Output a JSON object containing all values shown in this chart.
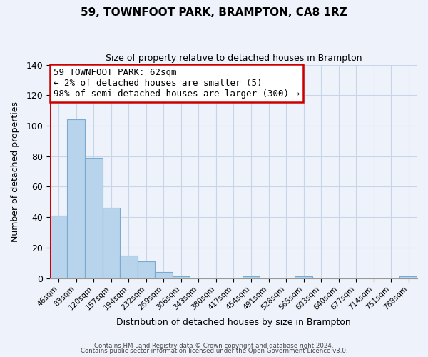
{
  "title": "59, TOWNFOOT PARK, BRAMPTON, CA8 1RZ",
  "subtitle": "Size of property relative to detached houses in Brampton",
  "xlabel": "Distribution of detached houses by size in Brampton",
  "ylabel": "Number of detached properties",
  "bar_labels": [
    "46sqm",
    "83sqm",
    "120sqm",
    "157sqm",
    "194sqm",
    "232sqm",
    "269sqm",
    "306sqm",
    "343sqm",
    "380sqm",
    "417sqm",
    "454sqm",
    "491sqm",
    "528sqm",
    "565sqm",
    "603sqm",
    "640sqm",
    "677sqm",
    "714sqm",
    "751sqm",
    "788sqm"
  ],
  "bar_values": [
    41,
    104,
    79,
    46,
    15,
    11,
    4,
    1,
    0,
    0,
    0,
    1,
    0,
    0,
    1,
    0,
    0,
    0,
    0,
    0,
    1
  ],
  "bar_color": "#b8d4ec",
  "bar_edge_color": "#7aaacf",
  "annotation_box_text": "59 TOWNFOOT PARK: 62sqm\n← 2% of detached houses are smaller (5)\n98% of semi-detached houses are larger (300) →",
  "annotation_box_color": "#ffffff",
  "annotation_box_edge_color": "#cc0000",
  "marker_line_color": "#cc0000",
  "ylim": [
    0,
    140
  ],
  "yticks": [
    0,
    20,
    40,
    60,
    80,
    100,
    120,
    140
  ],
  "grid_color": "#c8d4e8",
  "background_color": "#eef2fa",
  "footnote1": "Contains HM Land Registry data © Crown copyright and database right 2024.",
  "footnote2": "Contains public sector information licensed under the Open Government Licence v3.0."
}
